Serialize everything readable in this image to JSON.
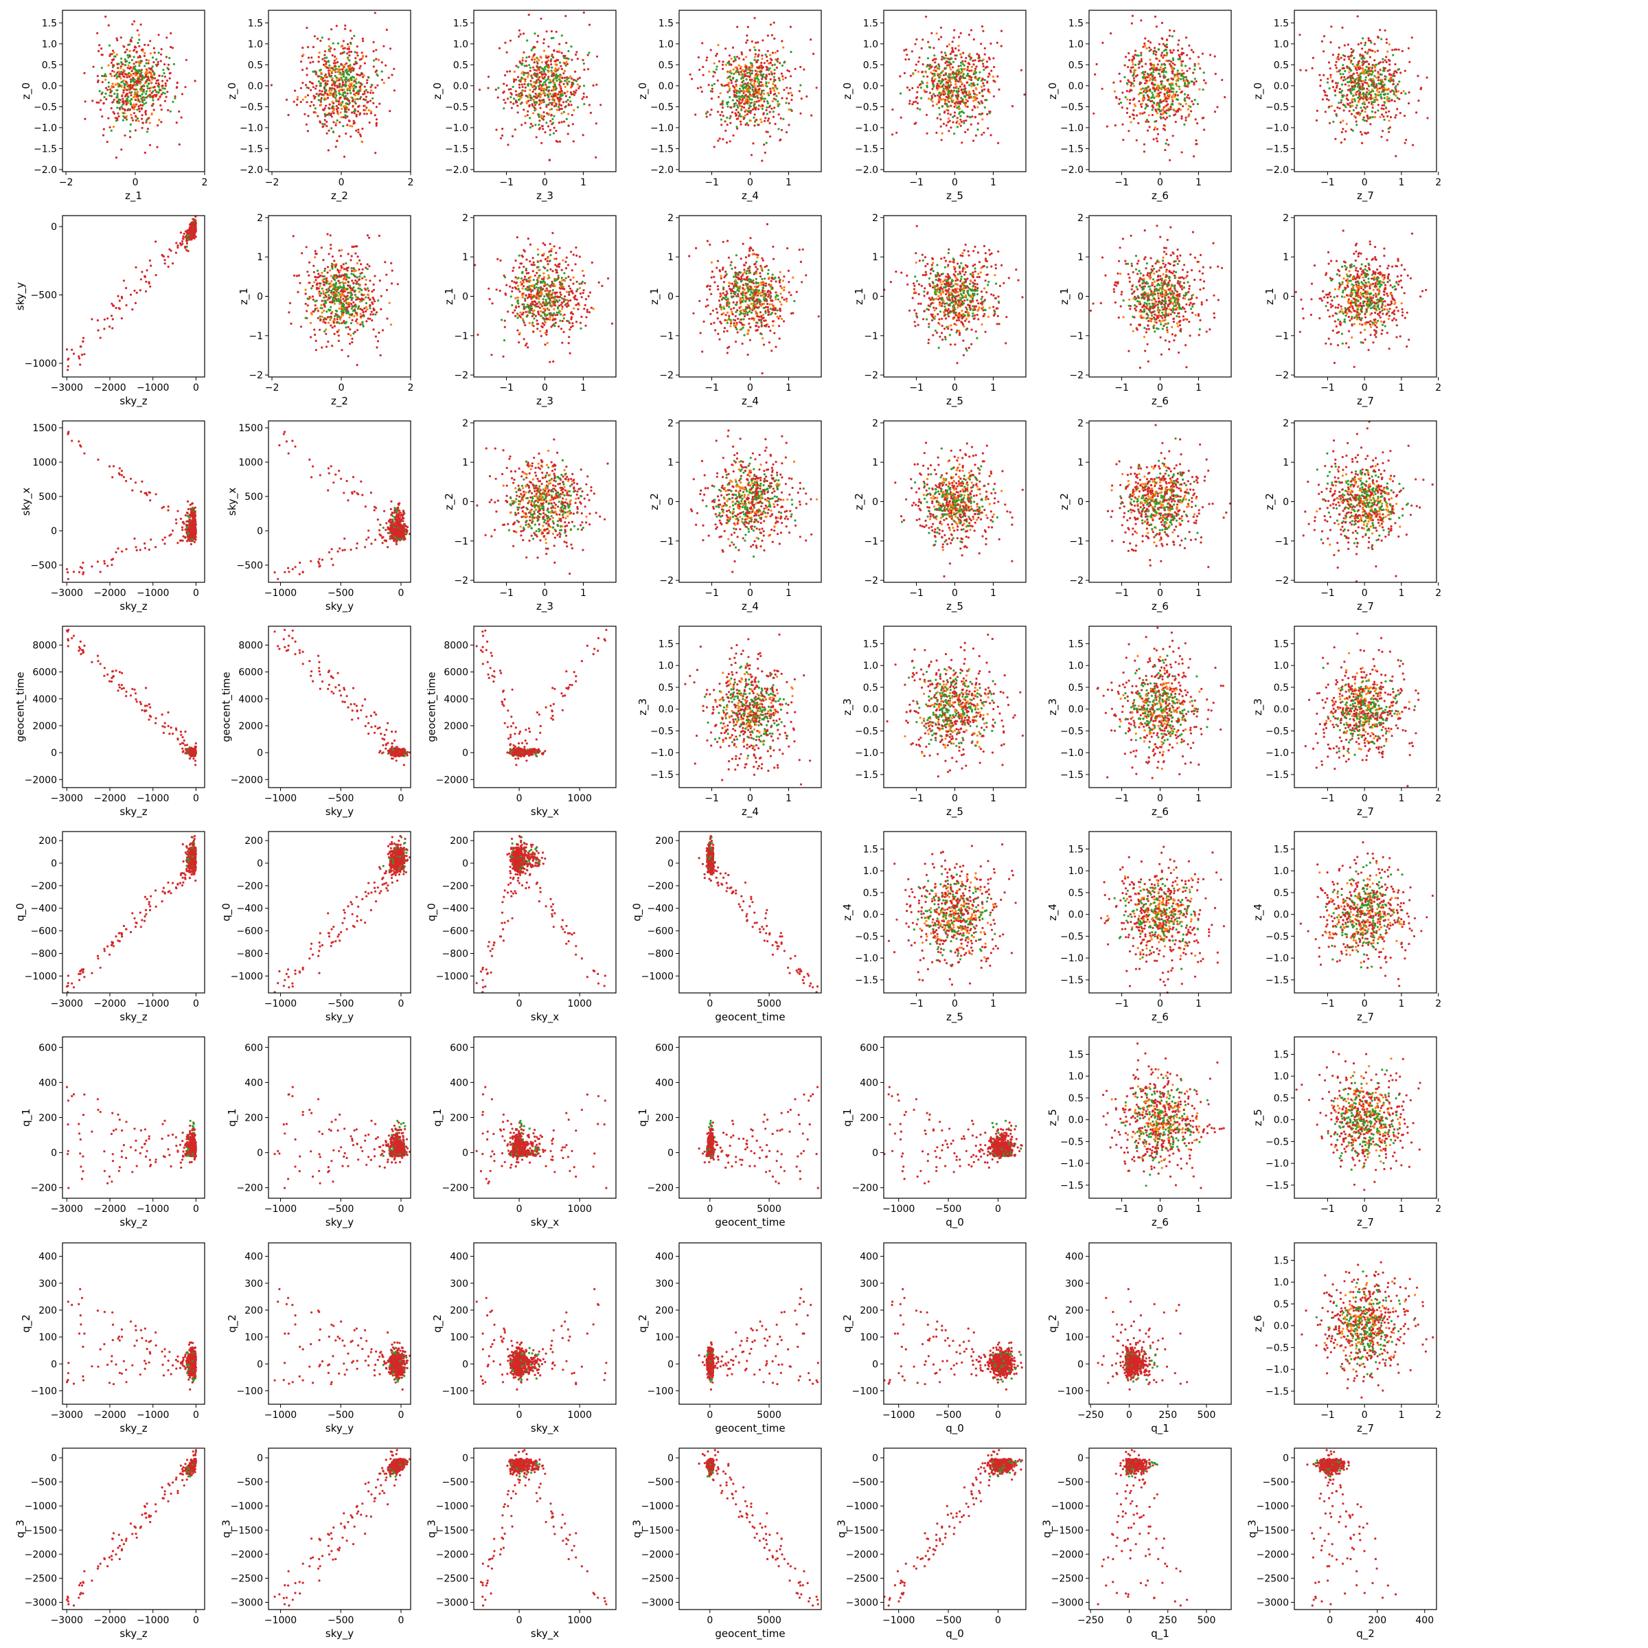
{
  "chart_data": {
    "type": "scatter",
    "layout": "lower-triangle data-space pairs, upper-triangle latent-space pairs",
    "grid": false,
    "legend": "none",
    "point_colors": {
      "red": "#d62728",
      "green": "#2ca02c",
      "orange": "#ff7f0e"
    },
    "data_variables": [
      "sky_z",
      "sky_y",
      "sky_x",
      "geocent_time",
      "q_0",
      "q_1",
      "q_2",
      "q_3"
    ],
    "latent_variables": [
      "z_0",
      "z_1",
      "z_2",
      "z_3",
      "z_4",
      "z_5",
      "z_6",
      "z_7"
    ],
    "axes": {
      "sky_z": {
        "lim": [
          -3100,
          200
        ],
        "ticks": [
          -3000,
          -2000,
          -1000,
          0
        ],
        "tick_labels": [
          "−3000",
          "−2000",
          "−1000",
          "0"
        ]
      },
      "sky_y": {
        "lim": [
          -1100,
          80
        ],
        "ticks": [
          -1000,
          -500,
          0
        ],
        "tick_labels": [
          "−1000",
          "−500",
          "0"
        ]
      },
      "sky_x": {
        "lim": [
          -750,
          1600
        ],
        "ticks": [
          -500,
          0,
          500,
          1000,
          1500
        ],
        "tick_labels": [
          "−500",
          "0",
          "500",
          "1000",
          "1500"
        ],
        "x_ticks": [
          0,
          1000
        ],
        "x_tick_labels": [
          "0",
          "1000"
        ]
      },
      "geocent_time": {
        "lim": [
          -2600,
          9400
        ],
        "ticks": [
          -2000,
          0,
          2000,
          4000,
          6000,
          8000
        ],
        "tick_labels": [
          "−2000",
          "0",
          "2000",
          "4000",
          "6000",
          "8000"
        ],
        "x_ticks": [
          0,
          5000
        ],
        "x_tick_labels": [
          "0",
          "5000"
        ]
      },
      "q_0": {
        "lim": [
          -1150,
          280
        ],
        "ticks": [
          -1000,
          -800,
          -600,
          -400,
          -200,
          0,
          200
        ],
        "tick_labels": [
          "−1000",
          "−800",
          "−600",
          "−400",
          "−200",
          "0",
          "200"
        ],
        "x_ticks": [
          -1000,
          -500,
          0
        ],
        "x_tick_labels": [
          "−1000",
          "−500",
          "0"
        ]
      },
      "q_1": {
        "lim": [
          -260,
          660
        ],
        "ticks": [
          -200,
          0,
          200,
          400,
          600
        ],
        "tick_labels": [
          "−200",
          "0",
          "200",
          "400",
          "600"
        ],
        "x_ticks": [
          -250,
          0,
          250,
          500
        ],
        "x_tick_labels": [
          "−250",
          "0",
          "250",
          "500"
        ]
      },
      "q_2": {
        "lim": [
          -150,
          450
        ],
        "ticks": [
          -100,
          0,
          100,
          200,
          300,
          400
        ],
        "tick_labels": [
          "−100",
          "0",
          "100",
          "200",
          "300",
          "400"
        ],
        "x_ticks": [
          0,
          200,
          400
        ],
        "x_tick_labels": [
          "0",
          "200",
          "400"
        ]
      },
      "q_3": {
        "lim": [
          -3150,
          200
        ],
        "ticks": [
          -3000,
          -2500,
          -2000,
          -1500,
          -1000,
          -500,
          0
        ],
        "tick_labels": [
          "−3000",
          "−2500",
          "−2000",
          "−1500",
          "−1000",
          "−500",
          "0"
        ]
      }
    },
    "latent_axes": {
      "ticks_half": [
        -2.0,
        -1.5,
        -1.0,
        -0.5,
        0.0,
        0.5,
        1.0,
        1.5
      ],
      "ticks_half_labels": [
        "−2.0",
        "−1.5",
        "−1.0",
        "−0.5",
        "0.0",
        "0.5",
        "1.0",
        "1.5"
      ],
      "ticks_half_short": [
        -1.5,
        -1.0,
        -0.5,
        0.0,
        0.5,
        1.0,
        1.5
      ],
      "ticks_half_short_labels": [
        "−1.5",
        "−1.0",
        "−0.5",
        "0.0",
        "0.5",
        "1.0",
        "1.5"
      ],
      "ticks_int2": [
        -2,
        -1,
        0,
        1,
        2
      ],
      "ticks_int2_labels": [
        "−2",
        "−1",
        "0",
        "1",
        "2"
      ],
      "ticks_x_wide": [
        -2,
        0,
        2
      ],
      "ticks_x_wide_labels": [
        "−2",
        "0",
        "2"
      ],
      "ticks_x_mid": [
        -1,
        0,
        1
      ],
      "ticks_x_mid_labels": [
        "−1",
        "0",
        "1"
      ],
      "ticks_x_z7": [
        -1,
        0,
        1,
        2
      ],
      "ticks_x_z7_labels": [
        "−1",
        "0",
        "1",
        "2"
      ]
    }
  }
}
